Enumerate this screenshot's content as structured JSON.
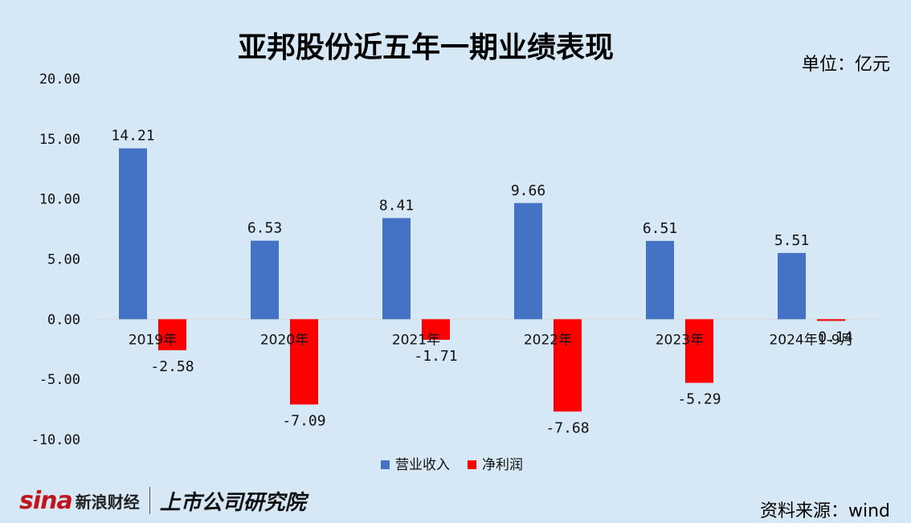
{
  "title": "亚邦股份近五年一期业绩表现",
  "unit": "单位：亿元",
  "source": "资料来源：wind",
  "watermark": "sina 新浪财经 | 上市公司研究院",
  "logo": {
    "sina": "sina",
    "sina_cn": "新浪财经",
    "institute": "上市公司研究院"
  },
  "colors": {
    "revenue": "#4472c4",
    "profit": "#ff0000",
    "background": "#d6e7f5"
  },
  "chart_data": {
    "type": "bar",
    "categories": [
      "2019年",
      "2020年",
      "2021年",
      "2022年",
      "2023年",
      "2024年1-9月"
    ],
    "series": [
      {
        "name": "营业收入",
        "values": [
          14.21,
          6.53,
          8.41,
          9.66,
          6.51,
          5.51
        ],
        "labels": [
          "14.21",
          "6.53",
          "8.41",
          "9.66",
          "6.51",
          "5.51"
        ]
      },
      {
        "name": "净利润",
        "values": [
          -2.58,
          -7.09,
          -1.71,
          -7.68,
          -5.29,
          -0.14
        ],
        "labels": [
          "-2.58",
          "-7.09",
          "-1.71",
          "-7.68",
          "-5.29",
          "-0.14"
        ]
      }
    ],
    "ylim": [
      -10,
      20
    ],
    "yticks": [
      "20.00",
      "15.00",
      "10.00",
      "5.00",
      "0.00",
      "-5.00",
      "-10.00"
    ],
    "legend": "bottom",
    "grid": false
  }
}
